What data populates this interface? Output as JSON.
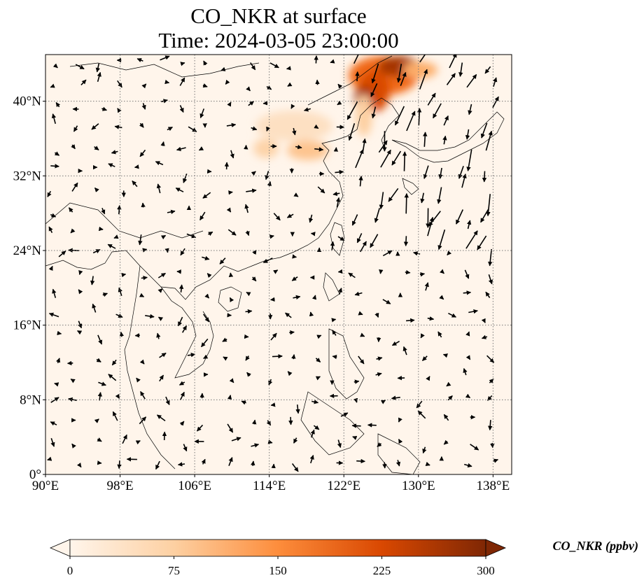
{
  "title": {
    "line1": "CO_NKR at surface",
    "line2": "Time: 2024-03-05 23:00:00"
  },
  "map": {
    "lon_ticks": [
      "90°E",
      "98°E",
      "106°E",
      "114°E",
      "122°E",
      "130°E",
      "138°E"
    ],
    "lat_ticks": [
      "0°",
      "8°N",
      "16°N",
      "24°N",
      "32°N",
      "40°N"
    ],
    "lon_values": [
      90,
      98,
      106,
      114,
      122,
      130,
      138
    ],
    "lat_values": [
      0,
      8,
      16,
      24,
      32,
      40
    ],
    "lon_range": [
      90,
      140
    ],
    "lat_range": [
      0,
      45
    ],
    "gridlines": "dotted",
    "background_color": "#fff5eb"
  },
  "colorbar": {
    "label": "CO_NKR (ppbv)",
    "ticks": [
      "0",
      "75",
      "150",
      "225",
      "300"
    ],
    "tick_values": [
      0,
      75,
      150,
      225,
      300
    ],
    "range": [
      0,
      300
    ],
    "colormap": [
      "#fff5eb",
      "#fdd0a2",
      "#fd8d3c",
      "#d94801",
      "#7f2704"
    ],
    "extend": "both"
  }
}
